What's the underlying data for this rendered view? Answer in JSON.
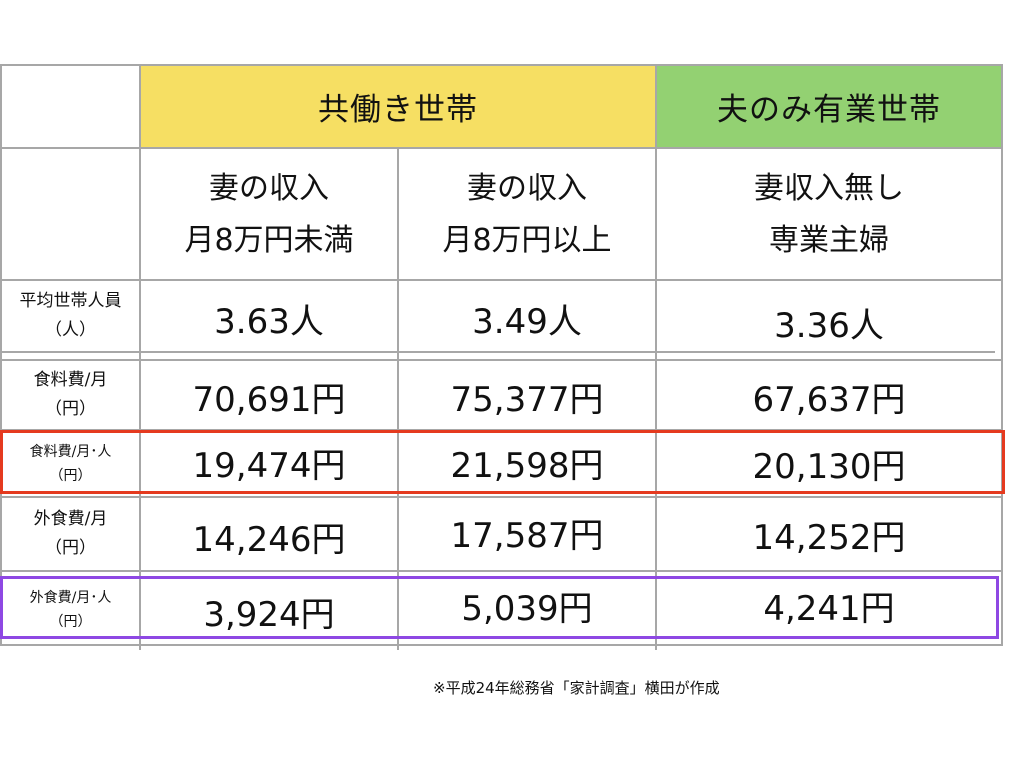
{
  "colors": {
    "dual_income_header": "#f6df63",
    "single_income_header": "#93d172",
    "grid": "#a7a7a7",
    "highlight_food_per_person": "#e53a1f",
    "highlight_dining_per_person": "#8e48e3"
  },
  "table": {
    "group_headers": {
      "dual_income": "共働き世帯",
      "single_income": "夫のみ有業世帯"
    },
    "columns": [
      {
        "line1": "妻の収入",
        "line2": "月8万円未満"
      },
      {
        "line1": "妻の収入",
        "line2": "月8万円以上"
      },
      {
        "line1": "妻収入無し",
        "line2": "専業主婦"
      }
    ],
    "rows": [
      {
        "label_line1": "平均世帯人員",
        "label_line2": "（人）",
        "values": [
          "3.63人",
          "3.49人",
          "3.36人"
        ]
      },
      {
        "label_line1": "食料費/月",
        "label_line2": "（円）",
        "values": [
          "70,691円",
          "75,377円",
          "67,637円"
        ]
      },
      {
        "label_line1": "食料費/月･人",
        "label_line2": "（円）",
        "values": [
          "19,474円",
          "21,598円",
          "20,130円"
        ]
      },
      {
        "label_line1": "外食費/月",
        "label_line2": "（円）",
        "values": [
          "14,246円",
          "17,587円",
          "14,252円"
        ]
      },
      {
        "label_line1": "外食費/月･人",
        "label_line2": "（円）",
        "values": [
          "3,924円",
          "5,039円",
          "4,241円"
        ]
      }
    ]
  },
  "source_note": "※平成24年総務省「家計調査」横田が作成"
}
